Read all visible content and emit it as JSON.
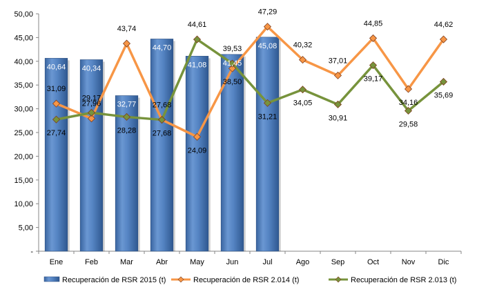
{
  "chart_data": {
    "type": "bar+line",
    "categories": [
      "Ene",
      "Feb",
      "Mar",
      "Abr",
      "May",
      "Jun",
      "Jul",
      "Ago",
      "Sep",
      "Oct",
      "Nov",
      "Dic"
    ],
    "ylim": [
      0,
      50
    ],
    "yticks": [
      0,
      5,
      10,
      15,
      20,
      25,
      30,
      35,
      40,
      45,
      50
    ],
    "ytick_labels": [
      "-",
      "5,00",
      "10,00",
      "15,00",
      "20,00",
      "25,00",
      "30,00",
      "35,00",
      "40,00",
      "45,00",
      "50,00"
    ],
    "grid": false,
    "legend_position": "bottom",
    "series": [
      {
        "name": "Recuperación de RSR 2015 (t)",
        "kind": "bar",
        "color": "#4F81BD",
        "values": [
          40.64,
          40.34,
          32.77,
          44.7,
          41.08,
          41.45,
          45.08,
          null,
          null,
          null,
          null,
          null
        ],
        "labels": [
          "40,64",
          "40,34",
          "32,77",
          "44,70",
          "41,08",
          "41,45",
          "45,08",
          null,
          null,
          null,
          null,
          null
        ]
      },
      {
        "name": "Recuperación de RSR 2.014 (t)",
        "kind": "line",
        "color": "#F79646",
        "values": [
          31.09,
          27.96,
          43.74,
          27.68,
          24.09,
          38.5,
          47.29,
          40.32,
          37.01,
          44.85,
          34.16,
          44.62
        ],
        "labels": [
          "31,09",
          "27,96",
          "43,74",
          "27,68",
          "24,09",
          "38,50",
          "47,29",
          "40,32",
          "37,01",
          "44,85",
          "34,16",
          "44,62"
        ]
      },
      {
        "name": "Recuperación de RSR 2.013 (t)",
        "kind": "line",
        "color": "#77933C",
        "values": [
          27.74,
          29.17,
          28.28,
          27.68,
          44.61,
          39.53,
          31.21,
          34.05,
          30.91,
          39.17,
          29.58,
          35.69
        ],
        "labels": [
          "27,74",
          "29,17",
          "28,28",
          "27,68",
          "44,61",
          "39,53",
          "31,21",
          "34,05",
          "30,91",
          "39,17",
          "29,58",
          "35,69"
        ]
      }
    ]
  }
}
